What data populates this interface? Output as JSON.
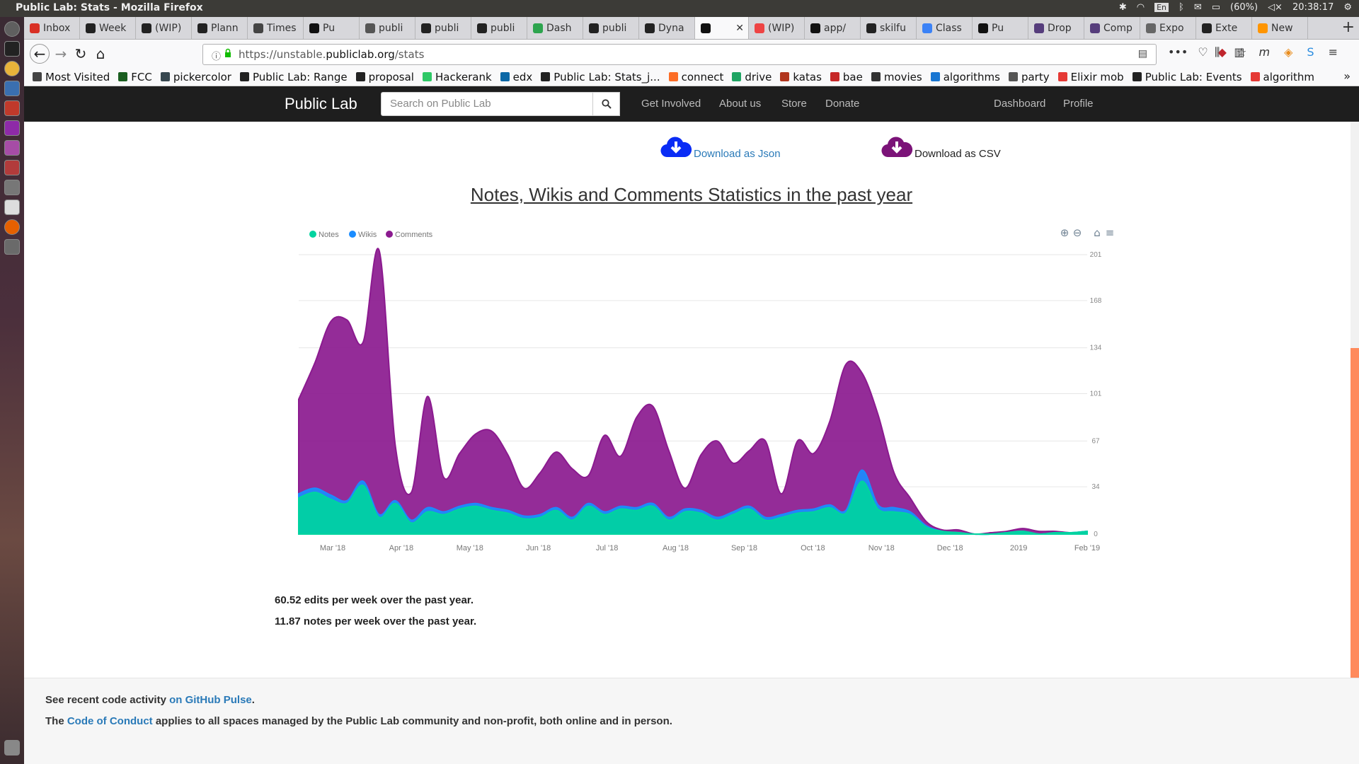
{
  "os": {
    "window_title": "Public Lab: Stats - Mozilla Firefox",
    "battery": "(60%)",
    "clock": "20:38:17",
    "lang": "En"
  },
  "tabs": [
    {
      "label": "Inbox",
      "color": "#d93025"
    },
    {
      "label": "Week",
      "color": "#222"
    },
    {
      "label": "(WIP)",
      "color": "#222"
    },
    {
      "label": "Plann",
      "color": "#222"
    },
    {
      "label": "Times",
      "color": "#444"
    },
    {
      "label": "Pu",
      "color": "#111"
    },
    {
      "label": "publi",
      "color": "#555"
    },
    {
      "label": "publi",
      "color": "#222"
    },
    {
      "label": "publi",
      "color": "#222"
    },
    {
      "label": "Dash",
      "color": "#2da44e"
    },
    {
      "label": "publi",
      "color": "#222"
    },
    {
      "label": "Dyna",
      "color": "#222"
    },
    {
      "label": "",
      "color": "#111",
      "active": true
    },
    {
      "label": "(WIP)",
      "color": "#e44"
    },
    {
      "label": "app/",
      "color": "#111"
    },
    {
      "label": "skilfu",
      "color": "#222"
    },
    {
      "label": "Class",
      "color": "#3b82f6"
    },
    {
      "label": "Pu",
      "color": "#111"
    },
    {
      "label": "Drop",
      "color": "#563d7c"
    },
    {
      "label": "Comp",
      "color": "#563d7c"
    },
    {
      "label": "Expo",
      "color": "#666"
    },
    {
      "label": "Exte",
      "color": "#222"
    },
    {
      "label": "New",
      "color": "#ff9500"
    }
  ],
  "urlbar": {
    "url_prefix": "https://unstable.",
    "url_domain": "publiclab.org",
    "url_path": "/stats"
  },
  "bookmarks": [
    {
      "label": "Most Visited",
      "color": "#444"
    },
    {
      "label": "FCC",
      "color": "#1b5e20"
    },
    {
      "label": "pickercolor",
      "color": "#37474f"
    },
    {
      "label": "Public Lab: Range",
      "color": "#222"
    },
    {
      "label": "proposal",
      "color": "#222"
    },
    {
      "label": "Hackerank",
      "color": "#2ec866"
    },
    {
      "label": "edx",
      "color": "#0b67a6"
    },
    {
      "label": "Public Lab: Stats_j...",
      "color": "#222"
    },
    {
      "label": "connect",
      "color": "#fc6d26"
    },
    {
      "label": "drive",
      "color": "#1fa463"
    },
    {
      "label": "katas",
      "color": "#b1361e"
    },
    {
      "label": "bae",
      "color": "#c62828"
    },
    {
      "label": "movies",
      "color": "#333"
    },
    {
      "label": "algorithms",
      "color": "#1976d2"
    },
    {
      "label": "party",
      "color": "#555"
    },
    {
      "label": "Elixir mob",
      "color": "#e53935"
    },
    {
      "label": "Public Lab: Events",
      "color": "#222"
    },
    {
      "label": "algorithm",
      "color": "#e53935"
    }
  ],
  "site": {
    "brand": "Public Lab",
    "search_placeholder": "Search on Public Lab",
    "nav_left": [
      "Get Involved",
      "About us",
      "Store",
      "Donate"
    ],
    "nav_right": [
      "Dashboard",
      "Profile"
    ]
  },
  "downloads": {
    "json_label": "Download as Json",
    "json_color": "#0a2cf5",
    "csv_label": "Download as CSV",
    "csv_color": "#7b1378"
  },
  "chart_heading": "Notes, Wikis and Comments Statistics in the past year",
  "chart_data": {
    "type": "area",
    "stacked": true,
    "legend_position": "top-left",
    "grid": true,
    "x_ticks": [
      "Mar '18",
      "Apr '18",
      "May '18",
      "Jun '18",
      "Jul '18",
      "Aug '18",
      "Sep '18",
      "Oct '18",
      "Nov '18",
      "Dec '18",
      "2019",
      "Feb '19"
    ],
    "y_ticks": [
      0,
      34,
      67,
      101,
      134,
      168,
      201
    ],
    "ylim": [
      0,
      201
    ],
    "series": [
      {
        "name": "Notes",
        "color": "#00d4a0",
        "values": [
          26,
          30,
          25,
          22,
          35,
          12,
          22,
          8,
          16,
          14,
          18,
          20,
          17,
          15,
          11,
          12,
          17,
          10,
          20,
          14,
          18,
          17,
          20,
          10,
          16,
          15,
          10,
          14,
          18,
          10,
          12,
          15,
          16,
          19,
          15,
          38,
          18,
          16,
          14,
          5,
          2,
          1,
          0,
          0,
          1,
          2,
          0,
          1,
          1,
          2
        ]
      },
      {
        "name": "Wikis",
        "color": "#1a8cff",
        "values": [
          3,
          3,
          3,
          2,
          3,
          2,
          2,
          2,
          3,
          2,
          2,
          2,
          2,
          2,
          2,
          2,
          2,
          2,
          2,
          2,
          2,
          2,
          2,
          2,
          2,
          2,
          2,
          2,
          2,
          2,
          2,
          2,
          2,
          2,
          2,
          8,
          3,
          3,
          2,
          1,
          0,
          0,
          0,
          0,
          0,
          0,
          0,
          0,
          0,
          0
        ]
      },
      {
        "name": "Comments",
        "color": "#8b1a8f",
        "values": [
          68,
          90,
          125,
          130,
          100,
          190,
          40,
          20,
          80,
          25,
          38,
          50,
          55,
          40,
          20,
          30,
          40,
          35,
          20,
          55,
          36,
          65,
          70,
          48,
          15,
          40,
          55,
          35,
          40,
          55,
          15,
          50,
          40,
          60,
          105,
          70,
          65,
          25,
          10,
          3,
          1,
          2,
          0,
          1,
          1,
          2,
          2,
          1,
          0,
          0
        ]
      }
    ]
  },
  "stats": {
    "edits_per_week": "60.52 edits per week over the past year.",
    "notes_per_week": "11.87 notes per week over the past year."
  },
  "footer": {
    "line1_pre": "See recent code activity ",
    "line1_link": "on GitHub Pulse",
    "line1_post": ".",
    "line2_pre": "The ",
    "line2_link": "Code of Conduct",
    "line2_post": " applies to all spaces managed by the Public Lab community and non-profit, both online and in person."
  }
}
